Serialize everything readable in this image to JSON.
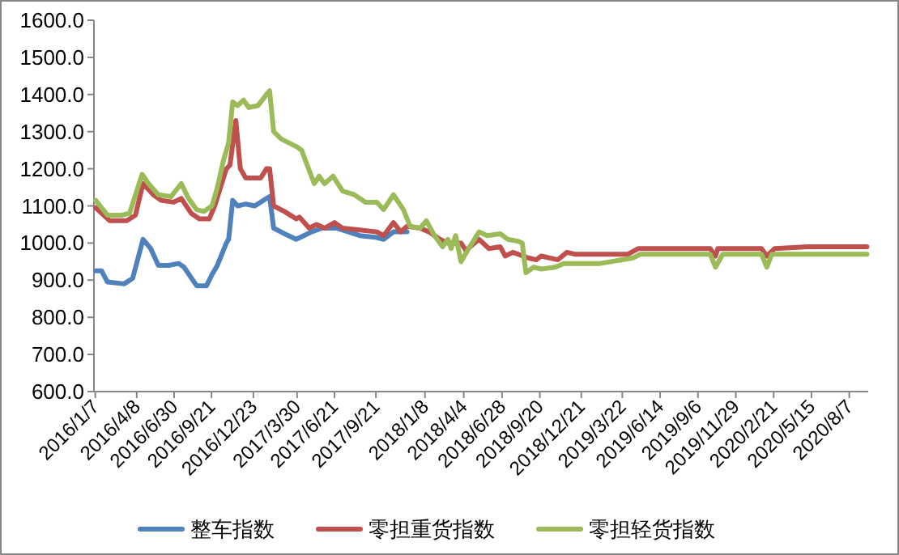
{
  "chart_data": {
    "type": "line",
    "xlim": [
      "2016-01-04",
      "2020-09-18"
    ],
    "xticks": [
      {
        "value": "2016-01-07",
        "label": "2016/1/7"
      },
      {
        "value": "2016-04-08",
        "label": "2016/4/8"
      },
      {
        "value": "2016-06-30",
        "label": "2016/6/30"
      },
      {
        "value": "2016-09-21",
        "label": "2016/9/21"
      },
      {
        "value": "2016-12-23",
        "label": "2016/12/23"
      },
      {
        "value": "2017-03-30",
        "label": "2017/3/30"
      },
      {
        "value": "2017-06-21",
        "label": "2017/6/21"
      },
      {
        "value": "2017-09-21",
        "label": "2017/9/21"
      },
      {
        "value": "2018-01-08",
        "label": "2018/1/8"
      },
      {
        "value": "2018-04-04",
        "label": "2018/4/4"
      },
      {
        "value": "2018-06-28",
        "label": "2018/6/28"
      },
      {
        "value": "2018-09-20",
        "label": "2018/9/20"
      },
      {
        "value": "2018-12-21",
        "label": "2018/12/21"
      },
      {
        "value": "2019-03-22",
        "label": "2019/3/22"
      },
      {
        "value": "2019-06-14",
        "label": "2019/6/14"
      },
      {
        "value": "2019-09-06",
        "label": "2019/9/6"
      },
      {
        "value": "2019-11-29",
        "label": "2019/11/29"
      },
      {
        "value": "2020-02-21",
        "label": "2020/2/21"
      },
      {
        "value": "2020-05-15",
        "label": "2020/5/15"
      },
      {
        "value": "2020-08-07",
        "label": "2020/8/7"
      }
    ],
    "ylim": [
      600,
      1600
    ],
    "yticks": [
      {
        "value": 600,
        "label": "600.0"
      },
      {
        "value": 700,
        "label": "700.0"
      },
      {
        "value": 800,
        "label": "800.0"
      },
      {
        "value": 900,
        "label": "900.0"
      },
      {
        "value": 1000,
        "label": "1000.0"
      },
      {
        "value": 1100,
        "label": "1100.0"
      },
      {
        "value": 1200,
        "label": "1200.0"
      },
      {
        "value": 1300,
        "label": "1300.0"
      },
      {
        "value": 1400,
        "label": "1400.0"
      },
      {
        "value": 1500,
        "label": "1500.0"
      },
      {
        "value": 1600,
        "label": "1600.0"
      }
    ],
    "legend": "bottom",
    "marker": "none",
    "line_style": "solid",
    "series": [
      {
        "name": "整车指数",
        "color": "#4f81bd",
        "x": [
          "2016-01-08",
          "2016-01-21",
          "2016-02-03",
          "2016-03-11",
          "2016-03-30",
          "2016-04-22",
          "2016-05-09",
          "2016-05-26",
          "2016-06-18",
          "2016-07-10",
          "2016-07-22",
          "2016-08-19",
          "2016-09-10",
          "2016-09-22",
          "2016-10-04",
          "2016-10-24",
          "2016-10-29",
          "2016-11-07",
          "2016-11-18",
          "2016-12-06",
          "2016-12-26",
          "2017-01-21",
          "2017-01-28",
          "2017-02-06",
          "2017-03-02",
          "2017-03-28",
          "2017-04-14",
          "2017-05-01",
          "2017-05-24",
          "2017-06-27",
          "2017-07-22",
          "2017-08-16",
          "2017-09-23",
          "2017-10-08",
          "2017-10-30",
          "2017-11-29"
        ],
        "values": [
          925,
          925,
          895,
          890,
          905,
          1010,
          985,
          940,
          940,
          945,
          935,
          885,
          885,
          915,
          940,
          1000,
          1010,
          1115,
          1100,
          1105,
          1100,
          1120,
          1125,
          1040,
          1025,
          1010,
          1020,
          1030,
          1040,
          1040,
          1030,
          1020,
          1015,
          1010,
          1030,
          1030
        ]
      },
      {
        "name": "零担重货指数",
        "color": "#c0504d",
        "x": [
          "2016-01-08",
          "2016-02-08",
          "2016-03-17",
          "2016-04-05",
          "2016-04-22",
          "2016-05-15",
          "2016-06-01",
          "2016-06-29",
          "2016-07-16",
          "2016-08-07",
          "2016-08-25",
          "2016-09-16",
          "2016-09-28",
          "2016-10-11",
          "2016-10-24",
          "2016-11-01",
          "2016-11-14",
          "2016-11-24",
          "2016-12-06",
          "2017-01-08",
          "2017-01-21",
          "2017-01-28",
          "2017-02-06",
          "2017-03-02",
          "2017-03-28",
          "2017-04-04",
          "2017-04-26",
          "2017-05-12",
          "2017-05-30",
          "2017-06-21",
          "2017-07-09",
          "2017-08-16",
          "2017-09-23",
          "2017-10-08",
          "2017-10-30",
          "2017-11-15",
          "2017-11-29",
          "2017-12-28",
          "2018-01-17",
          "2018-02-10",
          "2018-02-28",
          "2018-03-29",
          "2018-04-09",
          "2018-05-08",
          "2018-05-30",
          "2018-06-24",
          "2018-07-05",
          "2018-07-22",
          "2018-08-25",
          "2018-09-12",
          "2018-09-23",
          "2018-10-30",
          "2018-11-19",
          "2018-12-06",
          "2019-04-04",
          "2019-04-26",
          "2019-10-03",
          "2019-10-15",
          "2019-10-20",
          "2020-01-25",
          "2020-02-06",
          "2020-02-23",
          "2020-05-07",
          "2020-09-15"
        ],
        "values": [
          1095,
          1060,
          1060,
          1075,
          1160,
          1130,
          1115,
          1110,
          1120,
          1080,
          1065,
          1065,
          1100,
          1150,
          1200,
          1210,
          1330,
          1200,
          1175,
          1175,
          1200,
          1200,
          1100,
          1085,
          1065,
          1070,
          1040,
          1050,
          1040,
          1055,
          1040,
          1035,
          1030,
          1020,
          1055,
          1030,
          1045,
          1040,
          1030,
          1010,
          1000,
          1000,
          980,
          1010,
          985,
          990,
          965,
          975,
          960,
          955,
          965,
          955,
          975,
          970,
          970,
          985,
          985,
          965,
          985,
          985,
          965,
          985,
          990,
          990
        ]
      },
      {
        "name": "零担轻货指数",
        "color": "#9bbb59",
        "x": [
          "2016-01-08",
          "2016-02-03",
          "2016-03-05",
          "2016-03-23",
          "2016-04-20",
          "2016-05-04",
          "2016-05-26",
          "2016-06-23",
          "2016-07-16",
          "2016-08-01",
          "2016-08-19",
          "2016-09-04",
          "2016-09-22",
          "2016-10-04",
          "2016-10-17",
          "2016-10-29",
          "2016-11-07",
          "2016-11-18",
          "2016-12-01",
          "2016-12-13",
          "2017-01-02",
          "2017-01-21",
          "2017-01-28",
          "2017-02-06",
          "2017-02-23",
          "2017-03-28",
          "2017-04-09",
          "2017-05-07",
          "2017-05-18",
          "2017-05-30",
          "2017-06-18",
          "2017-07-09",
          "2017-08-04",
          "2017-08-29",
          "2017-09-23",
          "2017-10-08",
          "2017-10-30",
          "2017-11-21",
          "2017-12-06",
          "2017-12-28",
          "2018-01-11",
          "2018-01-29",
          "2018-02-16",
          "2018-02-28",
          "2018-03-07",
          "2018-03-17",
          "2018-03-29",
          "2018-04-15",
          "2018-05-08",
          "2018-05-26",
          "2018-06-24",
          "2018-07-11",
          "2018-08-02",
          "2018-08-12",
          "2018-08-20",
          "2018-09-06",
          "2018-09-23",
          "2018-10-24",
          "2018-11-12",
          "2019-02-01",
          "2019-02-25",
          "2019-04-15",
          "2019-05-01",
          "2019-10-03",
          "2019-10-15",
          "2019-10-31",
          "2020-01-25",
          "2020-02-06",
          "2020-02-17",
          "2020-09-15"
        ],
        "values": [
          1115,
          1075,
          1075,
          1080,
          1185,
          1160,
          1130,
          1125,
          1160,
          1120,
          1090,
          1085,
          1100,
          1150,
          1220,
          1270,
          1380,
          1370,
          1385,
          1365,
          1370,
          1400,
          1410,
          1300,
          1280,
          1260,
          1250,
          1160,
          1180,
          1160,
          1180,
          1140,
          1130,
          1110,
          1110,
          1090,
          1130,
          1090,
          1045,
          1040,
          1060,
          1020,
          990,
          1010,
          985,
          1020,
          950,
          985,
          1030,
          1020,
          1025,
          1010,
          1005,
          1000,
          920,
          935,
          930,
          935,
          945,
          945,
          950,
          960,
          970,
          970,
          935,
          970,
          970,
          935,
          970,
          970
        ]
      }
    ]
  }
}
